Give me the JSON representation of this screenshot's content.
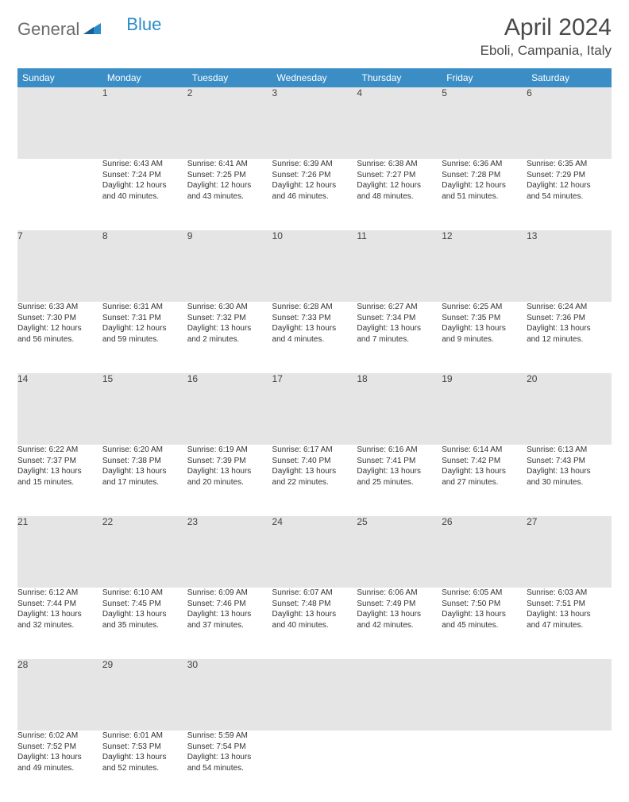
{
  "logo": {
    "text_general": "General",
    "text_blue": "Blue",
    "icon_color": "#2a8cc9"
  },
  "header": {
    "month_title": "April 2024",
    "location": "Eboli, Campania, Italy"
  },
  "colors": {
    "header_bg": "#3b8dc5",
    "header_text": "#ffffff",
    "daynum_bg": "#e5e5e5",
    "daynum_border": "#2d6a9e",
    "text": "#333333"
  },
  "fonts": {
    "title_size": 30,
    "location_size": 17,
    "weekday_size": 12,
    "daynum_size": 12,
    "detail_size": 10
  },
  "calendar": {
    "weekdays": [
      "Sunday",
      "Monday",
      "Tuesday",
      "Wednesday",
      "Thursday",
      "Friday",
      "Saturday"
    ],
    "weeks": [
      [
        null,
        {
          "day": "1",
          "sunrise": "Sunrise: 6:43 AM",
          "sunset": "Sunset: 7:24 PM",
          "daylight1": "Daylight: 12 hours",
          "daylight2": "and 40 minutes."
        },
        {
          "day": "2",
          "sunrise": "Sunrise: 6:41 AM",
          "sunset": "Sunset: 7:25 PM",
          "daylight1": "Daylight: 12 hours",
          "daylight2": "and 43 minutes."
        },
        {
          "day": "3",
          "sunrise": "Sunrise: 6:39 AM",
          "sunset": "Sunset: 7:26 PM",
          "daylight1": "Daylight: 12 hours",
          "daylight2": "and 46 minutes."
        },
        {
          "day": "4",
          "sunrise": "Sunrise: 6:38 AM",
          "sunset": "Sunset: 7:27 PM",
          "daylight1": "Daylight: 12 hours",
          "daylight2": "and 48 minutes."
        },
        {
          "day": "5",
          "sunrise": "Sunrise: 6:36 AM",
          "sunset": "Sunset: 7:28 PM",
          "daylight1": "Daylight: 12 hours",
          "daylight2": "and 51 minutes."
        },
        {
          "day": "6",
          "sunrise": "Sunrise: 6:35 AM",
          "sunset": "Sunset: 7:29 PM",
          "daylight1": "Daylight: 12 hours",
          "daylight2": "and 54 minutes."
        }
      ],
      [
        {
          "day": "7",
          "sunrise": "Sunrise: 6:33 AM",
          "sunset": "Sunset: 7:30 PM",
          "daylight1": "Daylight: 12 hours",
          "daylight2": "and 56 minutes."
        },
        {
          "day": "8",
          "sunrise": "Sunrise: 6:31 AM",
          "sunset": "Sunset: 7:31 PM",
          "daylight1": "Daylight: 12 hours",
          "daylight2": "and 59 minutes."
        },
        {
          "day": "9",
          "sunrise": "Sunrise: 6:30 AM",
          "sunset": "Sunset: 7:32 PM",
          "daylight1": "Daylight: 13 hours",
          "daylight2": "and 2 minutes."
        },
        {
          "day": "10",
          "sunrise": "Sunrise: 6:28 AM",
          "sunset": "Sunset: 7:33 PM",
          "daylight1": "Daylight: 13 hours",
          "daylight2": "and 4 minutes."
        },
        {
          "day": "11",
          "sunrise": "Sunrise: 6:27 AM",
          "sunset": "Sunset: 7:34 PM",
          "daylight1": "Daylight: 13 hours",
          "daylight2": "and 7 minutes."
        },
        {
          "day": "12",
          "sunrise": "Sunrise: 6:25 AM",
          "sunset": "Sunset: 7:35 PM",
          "daylight1": "Daylight: 13 hours",
          "daylight2": "and 9 minutes."
        },
        {
          "day": "13",
          "sunrise": "Sunrise: 6:24 AM",
          "sunset": "Sunset: 7:36 PM",
          "daylight1": "Daylight: 13 hours",
          "daylight2": "and 12 minutes."
        }
      ],
      [
        {
          "day": "14",
          "sunrise": "Sunrise: 6:22 AM",
          "sunset": "Sunset: 7:37 PM",
          "daylight1": "Daylight: 13 hours",
          "daylight2": "and 15 minutes."
        },
        {
          "day": "15",
          "sunrise": "Sunrise: 6:20 AM",
          "sunset": "Sunset: 7:38 PM",
          "daylight1": "Daylight: 13 hours",
          "daylight2": "and 17 minutes."
        },
        {
          "day": "16",
          "sunrise": "Sunrise: 6:19 AM",
          "sunset": "Sunset: 7:39 PM",
          "daylight1": "Daylight: 13 hours",
          "daylight2": "and 20 minutes."
        },
        {
          "day": "17",
          "sunrise": "Sunrise: 6:17 AM",
          "sunset": "Sunset: 7:40 PM",
          "daylight1": "Daylight: 13 hours",
          "daylight2": "and 22 minutes."
        },
        {
          "day": "18",
          "sunrise": "Sunrise: 6:16 AM",
          "sunset": "Sunset: 7:41 PM",
          "daylight1": "Daylight: 13 hours",
          "daylight2": "and 25 minutes."
        },
        {
          "day": "19",
          "sunrise": "Sunrise: 6:14 AM",
          "sunset": "Sunset: 7:42 PM",
          "daylight1": "Daylight: 13 hours",
          "daylight2": "and 27 minutes."
        },
        {
          "day": "20",
          "sunrise": "Sunrise: 6:13 AM",
          "sunset": "Sunset: 7:43 PM",
          "daylight1": "Daylight: 13 hours",
          "daylight2": "and 30 minutes."
        }
      ],
      [
        {
          "day": "21",
          "sunrise": "Sunrise: 6:12 AM",
          "sunset": "Sunset: 7:44 PM",
          "daylight1": "Daylight: 13 hours",
          "daylight2": "and 32 minutes."
        },
        {
          "day": "22",
          "sunrise": "Sunrise: 6:10 AM",
          "sunset": "Sunset: 7:45 PM",
          "daylight1": "Daylight: 13 hours",
          "daylight2": "and 35 minutes."
        },
        {
          "day": "23",
          "sunrise": "Sunrise: 6:09 AM",
          "sunset": "Sunset: 7:46 PM",
          "daylight1": "Daylight: 13 hours",
          "daylight2": "and 37 minutes."
        },
        {
          "day": "24",
          "sunrise": "Sunrise: 6:07 AM",
          "sunset": "Sunset: 7:48 PM",
          "daylight1": "Daylight: 13 hours",
          "daylight2": "and 40 minutes."
        },
        {
          "day": "25",
          "sunrise": "Sunrise: 6:06 AM",
          "sunset": "Sunset: 7:49 PM",
          "daylight1": "Daylight: 13 hours",
          "daylight2": "and 42 minutes."
        },
        {
          "day": "26",
          "sunrise": "Sunrise: 6:05 AM",
          "sunset": "Sunset: 7:50 PM",
          "daylight1": "Daylight: 13 hours",
          "daylight2": "and 45 minutes."
        },
        {
          "day": "27",
          "sunrise": "Sunrise: 6:03 AM",
          "sunset": "Sunset: 7:51 PM",
          "daylight1": "Daylight: 13 hours",
          "daylight2": "and 47 minutes."
        }
      ],
      [
        {
          "day": "28",
          "sunrise": "Sunrise: 6:02 AM",
          "sunset": "Sunset: 7:52 PM",
          "daylight1": "Daylight: 13 hours",
          "daylight2": "and 49 minutes."
        },
        {
          "day": "29",
          "sunrise": "Sunrise: 6:01 AM",
          "sunset": "Sunset: 7:53 PM",
          "daylight1": "Daylight: 13 hours",
          "daylight2": "and 52 minutes."
        },
        {
          "day": "30",
          "sunrise": "Sunrise: 5:59 AM",
          "sunset": "Sunset: 7:54 PM",
          "daylight1": "Daylight: 13 hours",
          "daylight2": "and 54 minutes."
        },
        null,
        null,
        null,
        null
      ]
    ]
  }
}
